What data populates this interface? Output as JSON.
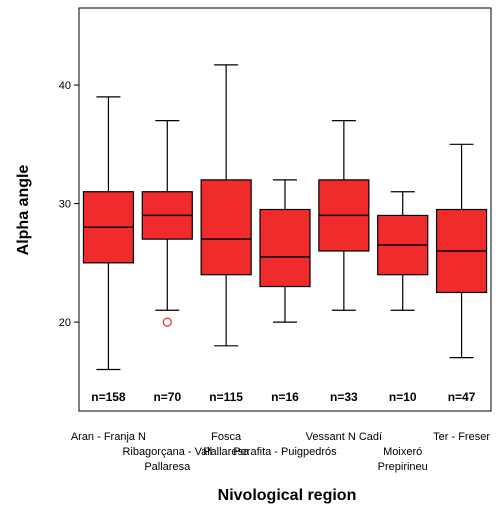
{
  "chart_data": {
    "type": "boxplot",
    "xlabel": "Nivological region",
    "ylabel": "Alpha angle",
    "ylim": [
      12.5,
      46.5
    ],
    "yticks": [
      20,
      30,
      40
    ],
    "box_color": "#ef2b2b",
    "outlier_color": "#ef2b2b",
    "categories": [
      {
        "label_lines": [
          "Aran - Franja N"
        ],
        "n": "n=158",
        "min": 16,
        "q1": 25,
        "median": 28,
        "q3": 31,
        "max": 39,
        "outliers": []
      },
      {
        "label_lines": [
          "Ribagorçana - Vall",
          "Pallaresa"
        ],
        "n": "n=70",
        "min": 21,
        "q1": 27,
        "median": 29,
        "q3": 31,
        "max": 37,
        "outliers": [
          20
        ]
      },
      {
        "label_lines": [
          "Fosca",
          "Pallaresa"
        ],
        "n": "n=115",
        "min": 18,
        "q1": 24,
        "median": 27,
        "q3": 32,
        "max": 41.7,
        "outliers": []
      },
      {
        "label_lines": [
          "Perafita - Puigpedrós"
        ],
        "n": "n=16",
        "min": 20,
        "q1": 23,
        "median": 25.5,
        "q3": 29.5,
        "max": 32,
        "outliers": []
      },
      {
        "label_lines": [
          "Vessant N Cadí"
        ],
        "n": "n=33",
        "min": 21,
        "q1": 26,
        "median": 29,
        "q3": 32,
        "max": 37,
        "outliers": []
      },
      {
        "label_lines": [
          "Moixeró",
          "Prepirineu"
        ],
        "n": "n=10",
        "min": 21,
        "q1": 24,
        "median": 26.5,
        "q3": 29,
        "max": 31,
        "outliers": []
      },
      {
        "label_lines": [
          "Ter - Freser"
        ],
        "n": "n=47",
        "min": 17,
        "q1": 22.5,
        "median": 26,
        "q3": 29.5,
        "max": 35,
        "outliers": []
      }
    ]
  }
}
